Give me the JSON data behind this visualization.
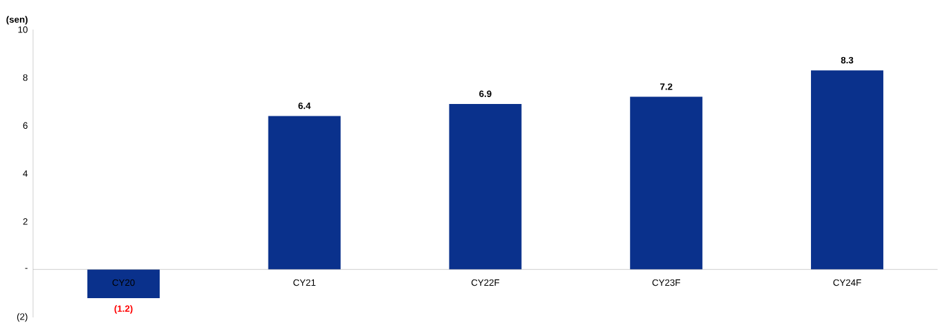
{
  "chart_data": {
    "type": "bar",
    "ylabel": "(sen)",
    "categories": [
      "CY20",
      "CY21",
      "CY22F",
      "CY23F",
      "CY24F"
    ],
    "values": [
      -1.2,
      6.4,
      6.9,
      7.2,
      8.3
    ],
    "value_labels": [
      "(1.2)",
      "6.4",
      "6.9",
      "7.2",
      "8.3"
    ],
    "color": "#0a318c",
    "ylim": [
      -2,
      10
    ],
    "yticks": [
      {
        "value": -2,
        "label": "(2)"
      },
      {
        "value": 0,
        "label": "-"
      },
      2,
      4,
      6,
      8,
      10
    ],
    "grid": false
  }
}
